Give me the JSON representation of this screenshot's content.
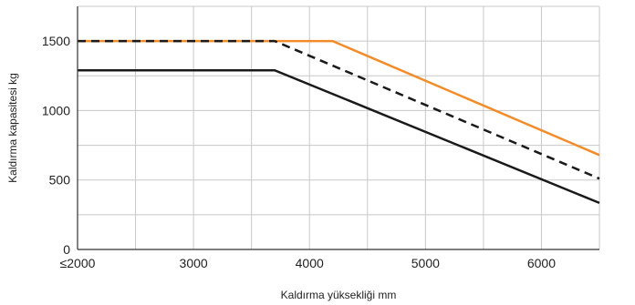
{
  "chart_data": {
    "type": "line",
    "xlabel": "Kaldırma yüksekliği mm",
    "ylabel": "Kaldırma kapasitesi kg",
    "xlim": [
      2000,
      6500
    ],
    "ylim": [
      0,
      1750
    ],
    "x_ticks": [
      {
        "value": 2000,
        "label": "≤2000"
      },
      {
        "value": 3000,
        "label": "3000"
      },
      {
        "value": 4000,
        "label": "4000"
      },
      {
        "value": 5000,
        "label": "5000"
      },
      {
        "value": 6000,
        "label": "6000"
      }
    ],
    "y_ticks": [
      0,
      500,
      1000,
      1500
    ],
    "grid": true,
    "x_grid_step": 500,
    "y_grid_step": 250,
    "series": [
      {
        "color": "#f28c28",
        "dash": false,
        "points": [
          [
            2000,
            1500
          ],
          [
            4200,
            1500
          ],
          [
            6500,
            680
          ]
        ]
      },
      {
        "color": "#1a1a1a",
        "dash": true,
        "points": [
          [
            2000,
            1500
          ],
          [
            3700,
            1500
          ],
          [
            6500,
            510
          ]
        ]
      },
      {
        "color": "#1a1a1a",
        "dash": false,
        "points": [
          [
            2000,
            1290
          ],
          [
            3700,
            1290
          ],
          [
            6500,
            335
          ]
        ]
      }
    ]
  }
}
